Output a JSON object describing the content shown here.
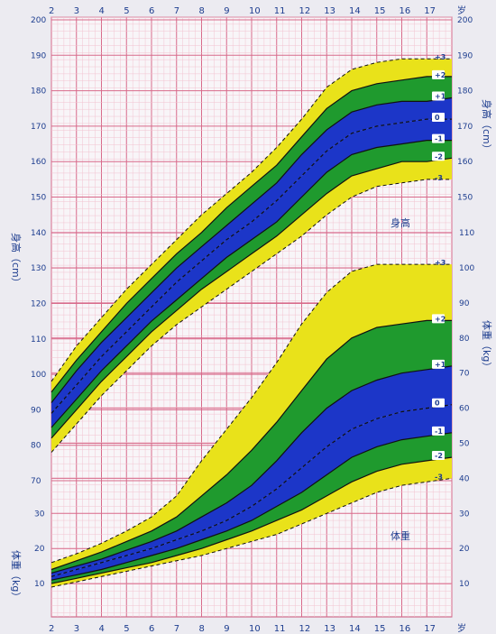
{
  "chart_data": [
    {
      "type": "area",
      "panel": "height",
      "xlabel": "岁",
      "axis_left_label": "身高（cm）",
      "axis_right_label": "身高（cm）",
      "panel_label": "身高",
      "xlim": [
        2,
        18
      ],
      "ylim": [
        70,
        200
      ],
      "x_ticks": [
        2,
        3,
        4,
        5,
        6,
        7,
        8,
        9,
        10,
        11,
        12,
        13,
        14,
        15,
        16,
        17
      ],
      "y_ticks": [
        70,
        80,
        90,
        100,
        110,
        120,
        130,
        140,
        150,
        160,
        170,
        180,
        190,
        200
      ],
      "x": [
        2,
        3,
        4,
        5,
        6,
        7,
        8,
        9,
        10,
        11,
        12,
        13,
        14,
        15,
        16,
        17,
        18
      ],
      "series": [
        {
          "name": "-3",
          "values": [
            78,
            86,
            94,
            101,
            108,
            114,
            119,
            124,
            129,
            134,
            139,
            145,
            150,
            153,
            154,
            155,
            155
          ]
        },
        {
          "name": "-2",
          "values": [
            82,
            90,
            98,
            105,
            112,
            118,
            124,
            129,
            134,
            139,
            145,
            151,
            156,
            158,
            160,
            160,
            161
          ]
        },
        {
          "name": "-1",
          "values": [
            85,
            93,
            101,
            108,
            115,
            121,
            127,
            133,
            138,
            143,
            150,
            157,
            162,
            164,
            165,
            166,
            166
          ]
        },
        {
          "name": "0",
          "values": [
            89,
            97,
            105,
            112,
            119,
            126,
            132,
            138,
            143,
            149,
            156,
            163,
            168,
            170,
            171,
            172,
            172
          ]
        },
        {
          "name": "+1",
          "values": [
            92,
            101,
            109,
            116,
            123,
            130,
            136,
            142,
            148,
            154,
            162,
            169,
            174,
            176,
            177,
            177,
            178
          ]
        },
        {
          "name": "+2",
          "values": [
            95,
            104,
            112,
            120,
            127,
            134,
            140,
            147,
            153,
            159,
            167,
            175,
            180,
            182,
            183,
            184,
            184
          ]
        },
        {
          "name": "+3",
          "values": [
            98,
            108,
            116,
            124,
            131,
            138,
            145,
            151,
            157,
            164,
            172,
            181,
            186,
            188,
            189,
            189,
            189
          ]
        }
      ]
    },
    {
      "type": "area",
      "panel": "weight",
      "xlabel": "岁",
      "axis_left_label": "体重（kg）",
      "axis_right_label": "体重（kg）",
      "panel_label": "体重",
      "xlim": [
        2,
        18
      ],
      "ylim": [
        0,
        110
      ],
      "x_ticks": [
        2,
        3,
        4,
        5,
        6,
        7,
        8,
        9,
        10,
        11,
        12,
        13,
        14,
        15,
        16,
        17
      ],
      "y_ticks_left": [
        10,
        20,
        30
      ],
      "y_ticks_right": [
        10,
        20,
        30,
        40,
        50,
        60,
        70,
        80,
        90,
        100,
        110
      ],
      "x": [
        2,
        3,
        4,
        5,
        6,
        7,
        8,
        9,
        10,
        11,
        12,
        13,
        14,
        15,
        16,
        17,
        18
      ],
      "series": [
        {
          "name": "-3",
          "values": [
            9,
            10.5,
            12,
            13.5,
            15,
            16.5,
            18,
            20,
            22,
            24,
            27,
            30,
            33,
            36,
            38,
            39,
            40
          ]
        },
        {
          "name": "-2",
          "values": [
            10,
            11.5,
            13,
            14.5,
            16,
            18,
            20,
            22.5,
            25,
            28,
            31,
            35,
            39,
            42,
            44,
            45,
            46
          ]
        },
        {
          "name": "-1",
          "values": [
            11,
            12.5,
            14,
            16,
            18,
            20,
            22.5,
            25,
            28,
            32,
            36,
            41,
            46,
            49,
            51,
            52,
            53
          ]
        },
        {
          "name": "0",
          "values": [
            12,
            14,
            16,
            18,
            20,
            22.5,
            25,
            28,
            32,
            37,
            43,
            49,
            54,
            57,
            59,
            60,
            61
          ]
        },
        {
          "name": "+1",
          "values": [
            13,
            15,
            17,
            19.5,
            22,
            25,
            29,
            33,
            38,
            45,
            53,
            60,
            65,
            68,
            70,
            71,
            72
          ]
        },
        {
          "name": "+2",
          "values": [
            14,
            16.5,
            19,
            22,
            25,
            29,
            35,
            41,
            48,
            56,
            65,
            74,
            80,
            83,
            84,
            85,
            85
          ]
        },
        {
          "name": "+3",
          "values": [
            16,
            18.5,
            21.5,
            25,
            29,
            35,
            45,
            54,
            63,
            73,
            84,
            93,
            99,
            101,
            101,
            101,
            101
          ]
        }
      ]
    }
  ],
  "colors": {
    "outer_band": "#e9e21a",
    "middle_band": "#1f9a2e",
    "inner_band": "#1c36c8",
    "grid_major": "#d86a8a",
    "grid_minor": "#f2c3d0",
    "text": "#1d3d8f"
  }
}
